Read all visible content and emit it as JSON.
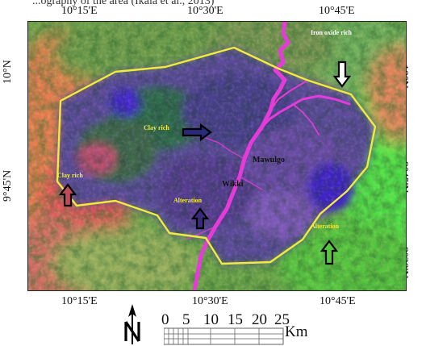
{
  "caption_fragment": "...ography of the area (Ikala et al., 2013)",
  "coordinates": {
    "top": [
      "10°15'E",
      "10°30'E",
      "10°45'E"
    ],
    "bottom": [
      "10°15'E",
      "10°30'E",
      "10°45'E"
    ],
    "left": [
      "10°N",
      "9°45'N"
    ],
    "right": [
      "10°N",
      "9°45'N",
      "9°30'N"
    ]
  },
  "annotations": {
    "iron_oxide": "Iron oxide rich",
    "clay_rich_center": "Clay rich",
    "clay_rich_west": "Clay rich",
    "alteration_center": "Alteration",
    "alteration_east": "Alteration",
    "town_mawulgo": "Mawulgo",
    "town_wikki": "Wikki"
  },
  "scale_bar": {
    "values": [
      "0",
      "5",
      "10",
      "15",
      "20",
      "25"
    ],
    "unit": "Km"
  },
  "colors": {
    "boundary": "#f2ea3c",
    "river": "#e53bd8",
    "arrow": "#000000"
  },
  "icons": [
    "north-arrow-icon",
    "arrow-down-icon",
    "arrow-up-icon",
    "arrow-right-icon"
  ]
}
